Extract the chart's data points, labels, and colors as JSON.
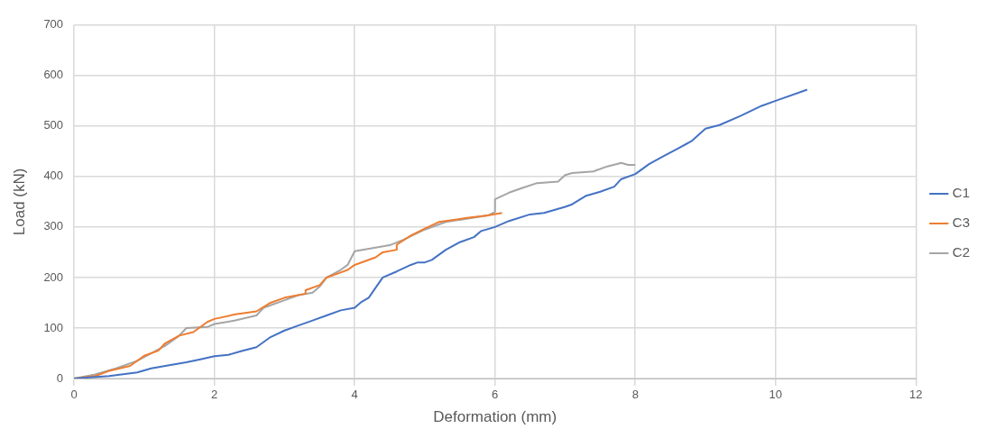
{
  "chart_data": {
    "type": "line",
    "xlabel": "Deformation (mm)",
    "ylabel": "Load (kN)",
    "xlim": [
      0,
      12
    ],
    "xticks": [
      0,
      2,
      4,
      6,
      8,
      10,
      12
    ],
    "ylim": [
      0,
      700
    ],
    "yticks": [
      0,
      100,
      200,
      300,
      400,
      500,
      600,
      700
    ],
    "grid": true,
    "legend": "right",
    "marker": "none",
    "line_style": "solid",
    "series": [
      {
        "name": "C1",
        "color": "#4472c4",
        "x": [
          0,
          0.5,
          0.9,
          1.1,
          1.3,
          1.6,
          1.8,
          2,
          2.2,
          2.4,
          2.6,
          2.8,
          3,
          3.2,
          3.4,
          3.6,
          3.8,
          4,
          4.1,
          4.2,
          4.3,
          4.4,
          4.6,
          4.8,
          4.9,
          5,
          5.1,
          5.3,
          5.5,
          5.7,
          5.8,
          6,
          6.2,
          6.5,
          6.7,
          7,
          7.1,
          7.3,
          7.5,
          7.7,
          7.8,
          8,
          8.2,
          8.4,
          8.6,
          8.8,
          9,
          9.2,
          9.5,
          9.8,
          10,
          10.45
        ],
        "values": [
          0,
          5,
          12,
          20,
          25,
          32,
          38,
          44,
          47,
          55,
          62,
          82,
          95,
          105,
          115,
          125,
          135,
          140,
          152,
          160,
          180,
          200,
          212,
          225,
          230,
          230,
          235,
          255,
          270,
          280,
          292,
          300,
          312,
          325,
          328,
          340,
          345,
          362,
          370,
          380,
          395,
          405,
          425,
          440,
          455,
          470,
          495,
          502,
          520,
          540,
          550,
          572
        ]
      },
      {
        "name": "C3",
        "color": "#ed7d31",
        "x": [
          0,
          0.3,
          0.5,
          0.8,
          1,
          1.2,
          1.3,
          1.5,
          1.7,
          1.9,
          2,
          2.3,
          2.6,
          2.8,
          3,
          3.3,
          3.3,
          3.5,
          3.6,
          3.8,
          3.9,
          4,
          4.3,
          4.4,
          4.6,
          4.6,
          4.8,
          5,
          5.2,
          5.6,
          5.9,
          6.1
        ],
        "values": [
          0,
          5,
          15,
          25,
          45,
          55,
          70,
          85,
          92,
          112,
          118,
          127,
          133,
          150,
          160,
          168,
          175,
          185,
          200,
          210,
          215,
          225,
          240,
          250,
          255,
          265,
          283,
          297,
          310,
          318,
          323,
          328
        ]
      },
      {
        "name": "C2",
        "color": "#a5a5a5",
        "x": [
          0,
          0.3,
          0.6,
          0.9,
          1.3,
          1.5,
          1.6,
          1.9,
          2,
          2.3,
          2.6,
          2.7,
          2.8,
          3,
          3.2,
          3.4,
          3.5,
          3.6,
          3.8,
          3.9,
          4,
          4.5,
          4.7,
          5,
          5.3,
          5.9,
          6,
          6,
          6.2,
          6.4,
          6.6,
          6.9,
          7,
          7.1,
          7.4,
          7.6,
          7.8,
          7.9,
          8
        ],
        "values": [
          0,
          8,
          20,
          35,
          65,
          85,
          100,
          102,
          108,
          115,
          125,
          140,
          145,
          155,
          165,
          170,
          182,
          200,
          215,
          225,
          252,
          264,
          275,
          295,
          310,
          323,
          330,
          355,
          368,
          378,
          387,
          390,
          403,
          407,
          410,
          420,
          427,
          423,
          423
        ]
      }
    ]
  }
}
